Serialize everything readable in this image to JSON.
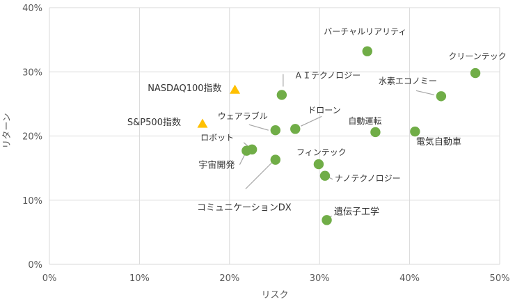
{
  "chart_data": {
    "type": "scatter",
    "xlabel": "リスク",
    "ylabel": "リターン",
    "xlim": [
      0,
      50
    ],
    "ylim": [
      0,
      40
    ],
    "x_ticks": [
      0,
      10,
      20,
      30,
      40,
      50
    ],
    "y_ticks": [
      0,
      10,
      20,
      30,
      40
    ],
    "x_tick_labels": [
      "0%",
      "10%",
      "20%",
      "30%",
      "40%",
      "50%"
    ],
    "y_tick_labels": [
      "0%",
      "10%",
      "20%",
      "30%",
      "40%"
    ],
    "grid": true,
    "colors": {
      "theme": "#70ad47",
      "index": "#ffc000",
      "leader": "#a6a6a6",
      "grid": "#d9d9d9"
    },
    "points": [
      {
        "label": "バーチャルリアリティ",
        "x": 35.3,
        "y": 33.2,
        "group": "theme"
      },
      {
        "label": "クリーンテック",
        "x": 47.3,
        "y": 29.8,
        "group": "theme"
      },
      {
        "label": "水素エコノミー",
        "x": 43.5,
        "y": 26.2,
        "group": "theme"
      },
      {
        "label": "ＡＩテクノロジー",
        "x": 25.8,
        "y": 26.4,
        "group": "theme"
      },
      {
        "label": "NASDAQ100指数",
        "x": 20.6,
        "y": 27.2,
        "group": "index"
      },
      {
        "label": "S&P500指数",
        "x": 17.0,
        "y": 21.9,
        "group": "index"
      },
      {
        "label": "ドローン",
        "x": 27.3,
        "y": 21.1,
        "group": "theme"
      },
      {
        "label": "ウェアラブル",
        "x": 25.1,
        "y": 20.9,
        "group": "theme"
      },
      {
        "label": "自動運転",
        "x": 36.2,
        "y": 20.6,
        "group": "theme"
      },
      {
        "label": "電気自動車",
        "x": 40.6,
        "y": 20.7,
        "group": "theme"
      },
      {
        "label": "ロボット",
        "x": 22.5,
        "y": 17.9,
        "group": "theme"
      },
      {
        "label": "宇宙開発",
        "x": 21.9,
        "y": 17.7,
        "group": "theme"
      },
      {
        "label": "コミュニケーションDX",
        "x": 25.1,
        "y": 16.3,
        "group": "theme"
      },
      {
        "label": "フィンテック",
        "x": 29.9,
        "y": 15.6,
        "group": "theme"
      },
      {
        "label": "ナノテクノロジー",
        "x": 30.6,
        "y": 13.8,
        "group": "theme"
      },
      {
        "label": "遺伝子工学",
        "x": 30.8,
        "y": 6.9,
        "group": "theme"
      }
    ]
  }
}
